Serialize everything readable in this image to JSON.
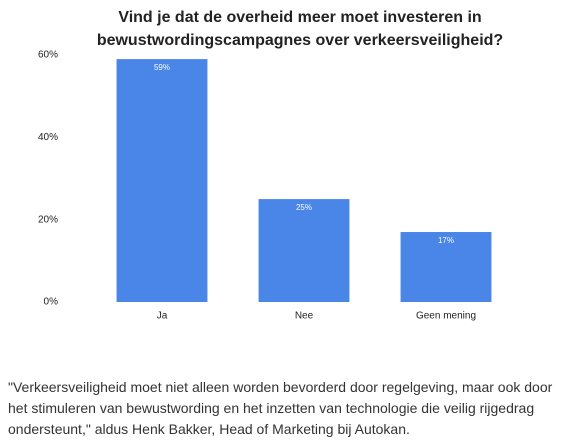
{
  "chart_data": {
    "type": "bar",
    "title": "Vind je dat de overheid meer moet investeren in bewustwordingscampagnes over verkeersveiligheid?",
    "categories": [
      "Ja",
      "Nee",
      "Geen mening"
    ],
    "values": [
      59,
      25,
      17
    ],
    "value_labels": [
      "59%",
      "25%",
      "17%"
    ],
    "color": "#4a86e8",
    "ylim": [
      0,
      60
    ],
    "yticks": [
      {
        "value": 0,
        "label": "0%"
      },
      {
        "value": 20,
        "label": "20%"
      },
      {
        "value": 40,
        "label": "40%"
      },
      {
        "value": 60,
        "label": "60%"
      }
    ],
    "grid": false
  },
  "quote": [
    "\"Verkeersveiligheid moet niet alleen worden bevorderd door regelgeving, maar ook door",
    "het stimuleren van bewustwording en het inzetten van technologie die veilig rijgedrag",
    "ondersteunt,\" aldus Henk Bakker, Head of Marketing bij Autokan."
  ]
}
